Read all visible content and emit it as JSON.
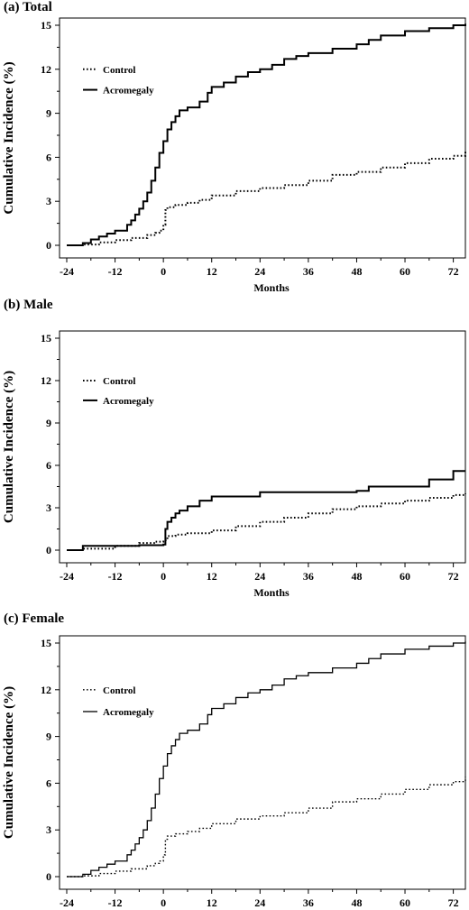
{
  "chart_data": [
    {
      "type": "line",
      "panel_title": "(a) Total",
      "xlabel": "Months",
      "ylabel": "Cumulative  Incidence  (%)",
      "xlim": [
        -24,
        75
      ],
      "ylim": [
        0,
        15
      ],
      "x_ticks": [
        -24,
        -12,
        0,
        12,
        24,
        36,
        48,
        60,
        72
      ],
      "y_ticks": [
        0,
        3,
        6,
        9,
        12,
        15
      ],
      "legend": "upper-left",
      "series": [
        {
          "name": "Control",
          "style": "dotted",
          "x": [
            -24,
            -20,
            -16,
            -12,
            -8,
            -4,
            -2,
            -1,
            0,
            0.5,
            1,
            3,
            6,
            9,
            12,
            18,
            24,
            30,
            36,
            42,
            48,
            54,
            60,
            66,
            72,
            75
          ],
          "y": [
            0,
            0.05,
            0.2,
            0.35,
            0.5,
            0.7,
            0.85,
            1.0,
            1.4,
            2.4,
            2.6,
            2.75,
            2.9,
            3.1,
            3.4,
            3.7,
            3.9,
            4.1,
            4.4,
            4.8,
            5.0,
            5.3,
            5.6,
            5.9,
            6.1,
            6.4
          ]
        },
        {
          "name": "Acromegaly",
          "style": "solid",
          "x": [
            -24,
            -20,
            -18,
            -16,
            -14,
            -12,
            -9,
            -8,
            -7,
            -6,
            -5,
            -4,
            -3,
            -2,
            -1,
            0,
            1,
            2,
            3,
            4,
            6,
            9,
            11,
            12,
            15,
            18,
            21,
            24,
            27,
            30,
            33,
            36,
            42,
            48,
            51,
            54,
            60,
            66,
            72,
            75
          ],
          "y": [
            0,
            0.15,
            0.4,
            0.6,
            0.8,
            1.0,
            1.4,
            1.7,
            2.1,
            2.5,
            3.0,
            3.6,
            4.4,
            5.3,
            6.3,
            7.1,
            7.9,
            8.4,
            8.8,
            9.2,
            9.4,
            9.8,
            10.4,
            10.8,
            11.1,
            11.5,
            11.8,
            12.0,
            12.3,
            12.7,
            12.9,
            13.1,
            13.4,
            13.7,
            14.0,
            14.3,
            14.6,
            14.8,
            15.0,
            15.1
          ]
        }
      ]
    },
    {
      "type": "line",
      "panel_title": "(b) Male",
      "xlabel": "Months",
      "ylabel": "Cumulative  Incidence  (%)",
      "xlim": [
        -24,
        75
      ],
      "ylim": [
        0,
        15
      ],
      "x_ticks": [
        -24,
        -12,
        0,
        12,
        24,
        36,
        48,
        60,
        72
      ],
      "y_ticks": [
        0,
        3,
        6,
        9,
        12,
        15
      ],
      "legend": "upper-left",
      "series": [
        {
          "name": "Control",
          "style": "dotted",
          "x": [
            -24,
            -20,
            -12,
            -6,
            -2,
            0,
            1,
            3,
            6,
            12,
            18,
            24,
            30,
            36,
            42,
            48,
            54,
            60,
            66,
            72,
            75
          ],
          "y": [
            0,
            0.1,
            0.3,
            0.5,
            0.6,
            0.7,
            1.0,
            1.1,
            1.2,
            1.4,
            1.7,
            2.0,
            2.3,
            2.6,
            2.9,
            3.1,
            3.3,
            3.5,
            3.7,
            3.9,
            4.0
          ]
        },
        {
          "name": "Acromegaly",
          "style": "solid",
          "x": [
            -24,
            -20,
            -12,
            -6,
            0,
            0.5,
            1,
            2,
            3,
            4,
            6,
            9,
            12,
            18,
            24,
            36,
            48,
            51,
            60,
            66,
            72,
            75
          ],
          "y": [
            0,
            0.3,
            0.3,
            0.35,
            0.4,
            1.5,
            2.0,
            2.3,
            2.6,
            2.8,
            3.1,
            3.5,
            3.8,
            3.8,
            4.1,
            4.1,
            4.2,
            4.5,
            4.5,
            5.0,
            5.6,
            5.6
          ]
        }
      ]
    },
    {
      "type": "line",
      "panel_title": "(c) Female",
      "xlabel": "Months",
      "ylabel": "Cumulative  Incidence  (%)",
      "xlim": [
        -24,
        75
      ],
      "ylim": [
        0,
        15
      ],
      "x_ticks": [
        -24,
        -12,
        0,
        12,
        24,
        36,
        48,
        60,
        72
      ],
      "y_ticks": [
        0,
        3,
        6,
        9,
        12,
        15
      ],
      "legend": "upper-left",
      "series": [
        {
          "name": "Control",
          "style": "dotted",
          "x": [
            -24,
            -20,
            -16,
            -12,
            -8,
            -4,
            -2,
            -1,
            0,
            0.5,
            1,
            3,
            6,
            9,
            12,
            18,
            24,
            30,
            36,
            42,
            48,
            54,
            60,
            66,
            72,
            75
          ],
          "y": [
            0,
            0.05,
            0.2,
            0.35,
            0.5,
            0.7,
            0.85,
            1.0,
            1.4,
            2.4,
            2.6,
            2.75,
            2.9,
            3.1,
            3.4,
            3.7,
            3.9,
            4.1,
            4.4,
            4.8,
            5.0,
            5.3,
            5.6,
            5.9,
            6.1,
            6.4
          ]
        },
        {
          "name": "Acromegaly",
          "style": "solid",
          "x": [
            -24,
            -20,
            -18,
            -16,
            -14,
            -12,
            -9,
            -8,
            -7,
            -6,
            -5,
            -4,
            -3,
            -2,
            -1,
            0,
            1,
            2,
            3,
            4,
            6,
            9,
            11,
            12,
            15,
            18,
            21,
            24,
            27,
            30,
            33,
            36,
            42,
            48,
            51,
            54,
            60,
            66,
            72,
            75
          ],
          "y": [
            0,
            0.15,
            0.4,
            0.6,
            0.8,
            1.0,
            1.4,
            1.7,
            2.1,
            2.5,
            3.0,
            3.6,
            4.4,
            5.3,
            6.3,
            7.1,
            7.9,
            8.4,
            8.8,
            9.2,
            9.4,
            9.8,
            10.4,
            10.8,
            11.1,
            11.5,
            11.8,
            12.0,
            12.3,
            12.7,
            12.9,
            13.1,
            13.4,
            13.7,
            14.0,
            14.3,
            14.6,
            14.8,
            15.0,
            15.1
          ]
        }
      ]
    }
  ]
}
